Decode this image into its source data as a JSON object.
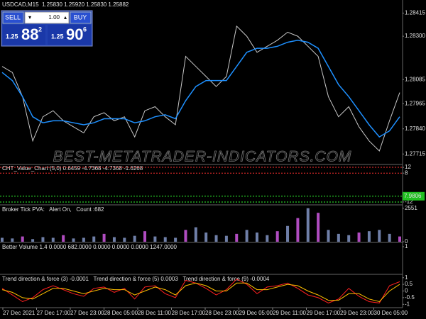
{
  "header": {
    "symbol_line": "USDCAD,M15  1.25830 1.25920 1.25830 1.25882"
  },
  "trade_panel": {
    "sell": "SELL",
    "lot": "1.00",
    "buy": "BUY",
    "bid": {
      "prefix": "1.25",
      "big": "88",
      "small": "2"
    },
    "ask": {
      "prefix": "1.25",
      "big": "90",
      "small": "6"
    }
  },
  "watermark": "BEST-METATRADER-INDICATORS.COM",
  "price_chart": {
    "ylim": [
      1.2767,
      1.2848
    ],
    "yticks": [
      1.28415,
      {
        "value": 1.283,
        "label": "1.28300"
      },
      1.28085,
      1.27965,
      {
        "value": 1.2784,
        "label": "1.27840"
      },
      1.27715
    ],
    "close_color": "#c8c8c8",
    "ma_color": "#1e90ff",
    "close": [
      1.2815,
      1.2812,
      1.28,
      1.2778,
      1.279,
      1.2793,
      1.2788,
      1.2785,
      1.2782,
      1.279,
      1.2792,
      1.2788,
      1.279,
      1.278,
      1.2793,
      1.2795,
      1.279,
      1.2786,
      1.282,
      1.2815,
      1.281,
      1.2805,
      1.281,
      1.2835,
      1.283,
      1.2822,
      1.2825,
      1.2828,
      1.2832,
      1.283,
      1.2825,
      1.282,
      1.28,
      1.279,
      1.2795,
      1.2785,
      1.2778,
      1.2773,
      1.2788,
      1.2802
    ],
    "ma": [
      1.2812,
      1.2808,
      1.28,
      1.279,
      1.2787,
      1.2788,
      1.2788,
      1.2787,
      1.2786,
      1.2787,
      1.2789,
      1.2789,
      1.2789,
      1.2787,
      1.2788,
      1.279,
      1.2791,
      1.2789,
      1.2798,
      1.2805,
      1.2808,
      1.2808,
      1.2808,
      1.2815,
      1.2822,
      1.2824,
      1.2824,
      1.2825,
      1.2827,
      1.2828,
      1.2827,
      1.2824,
      1.2815,
      1.2806,
      1.28,
      1.2793,
      1.2786,
      1.278,
      1.2783,
      1.279
    ]
  },
  "value_chart": {
    "label": "CHT_Value_Chart (5,0) 0.6459 -4.7368 -4.7368 -1.6268",
    "ylim": [
      -13.5,
      13.5
    ],
    "yticks": [
      12,
      8,
      -8,
      -12
    ],
    "tick_colors": [
      "#ff3030",
      "#ff3030",
      "#30ff30",
      "#30ff30"
    ],
    "badge": "7.9806",
    "badge_color": "#20c020"
  },
  "tick_pva": {
    "label": "Broker Tick PVA:   Alert On,   Count :682",
    "ylim": [
      0,
      2750
    ],
    "yticks": [
      2551,
      0
    ],
    "values": [
      300,
      250,
      400,
      200,
      350,
      300,
      500,
      250,
      300,
      400,
      600,
      350,
      300,
      450,
      800,
      400,
      350,
      300,
      900,
      1100,
      700,
      500,
      450,
      600,
      900,
      700,
      500,
      800,
      1200,
      1800,
      2551,
      2200,
      900,
      600,
      500,
      700,
      800,
      900,
      600,
      400
    ],
    "colors": [
      "#6f7fa8",
      "#6f7fa8",
      "#b04cc0",
      "#6f7fa8",
      "#6f7fa8",
      "#6f7fa8",
      "#b04cc0",
      "#6f7fa8",
      "#6f7fa8",
      "#6f7fa8",
      "#b04cc0",
      "#6f7fa8",
      "#6f7fa8",
      "#6f7fa8",
      "#b04cc0",
      "#6f7fa8",
      "#6f7fa8",
      "#6f7fa8",
      "#b04cc0",
      "#6f7fa8",
      "#6f7fa8",
      "#6f7fa8",
      "#6f7fa8",
      "#b04cc0",
      "#6f7fa8",
      "#6f7fa8",
      "#6f7fa8",
      "#b04cc0",
      "#6f7fa8",
      "#b04cc0",
      "#6f7fa8",
      "#b04cc0",
      "#6f7fa8",
      "#6f7fa8",
      "#6f7fa8",
      "#b04cc0",
      "#6f7fa8",
      "#6f7fa8",
      "#6f7fa8",
      "#b04cc0"
    ]
  },
  "better_volume": {
    "label": "Better Volume 1.4 0.0000 682.0000 0.0000 0.0000 0.0000 1247.0000",
    "ylim": [
      0,
      1
    ],
    "yticks": [
      1
    ]
  },
  "trend": {
    "label": "Trend direction & force (3) -0.0001   Trend direction & force (5) 0.0003   Trend direction & force (9) -0.0004",
    "ylim": [
      -1.2,
      1.2
    ],
    "yticks": [
      1,
      0.5,
      0,
      -0.5,
      -1
    ],
    "series": [
      {
        "color": "#ff2020",
        "values": [
          0.2,
          -0.3,
          -0.8,
          -0.5,
          0.1,
          0.4,
          0.1,
          -0.2,
          -0.4,
          0.2,
          0.3,
          -0.1,
          0.2,
          -0.6,
          0.3,
          0.4,
          -0.2,
          -0.5,
          0.8,
          0.6,
          0.2,
          -0.3,
          0.1,
          0.9,
          0.5,
          -0.2,
          0.3,
          0.4,
          0.6,
          0.2,
          -0.3,
          -0.5,
          -0.9,
          -0.6,
          0.2,
          -0.4,
          -0.8,
          -0.9,
          0.4,
          0.7
        ]
      },
      {
        "color": "#ffc000",
        "values": [
          0.1,
          -0.1,
          -0.5,
          -0.6,
          -0.2,
          0.2,
          0.2,
          0,
          -0.2,
          0,
          0.2,
          0.1,
          0.1,
          -0.3,
          0,
          0.3,
          0.1,
          -0.3,
          0.4,
          0.6,
          0.4,
          0,
          0,
          0.6,
          0.6,
          0.1,
          0.1,
          0.3,
          0.5,
          0.4,
          0,
          -0.3,
          -0.7,
          -0.7,
          -0.2,
          -0.2,
          -0.6,
          -0.8,
          0,
          0.5
        ]
      }
    ]
  },
  "time_axis": [
    "27 Dec 2021",
    "27 Dec 17:00",
    "27 Dec 23:00",
    "28 Dec 05:00",
    "28 Dec 11:00",
    "28 Dec 17:00",
    "28 Dec 23:00",
    "29 Dec 05:00",
    "29 Dec 11:00",
    "29 Dec 17:00",
    "29 Dec 23:00",
    "30 Dec 05:00"
  ]
}
